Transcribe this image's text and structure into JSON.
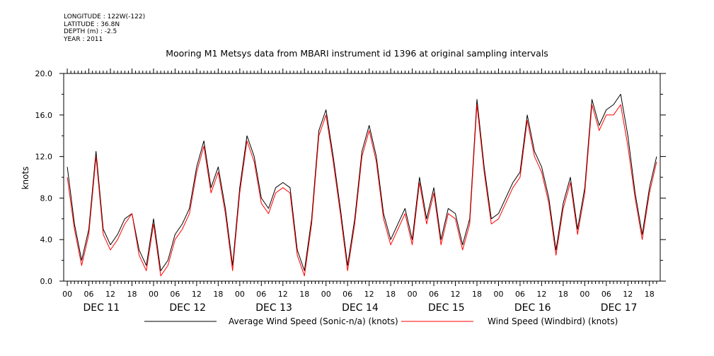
{
  "header": {
    "longitude": "LONGITUDE : 122W(-122)",
    "latitude": "LATITUDE : 36.8N",
    "depth": "DEPTH (m) : -2.5",
    "year": "YEAR : 2011"
  },
  "chart_data": {
    "type": "line",
    "title": "Mooring M1 Metsys data from MBARI instrument id 1396 at original sampling intervals",
    "ylabel": "knots",
    "xlabel": "",
    "ylim": [
      0,
      20
    ],
    "yticks": [
      "0.0",
      "4.0",
      "8.0",
      "12.0",
      "16.0",
      "20.0"
    ],
    "xlim_hours": [
      -1,
      165
    ],
    "hour_ticks": [
      "00",
      "06",
      "12",
      "18",
      "00",
      "06",
      "12",
      "18",
      "00",
      "06",
      "12",
      "18",
      "00",
      "06",
      "12",
      "18",
      "00",
      "06",
      "12",
      "18",
      "00",
      "06",
      "12",
      "18",
      "00",
      "06",
      "12",
      "18"
    ],
    "day_labels": [
      "DEC 11",
      "DEC 12",
      "DEC 13",
      "DEC 14",
      "DEC 15",
      "DEC 16",
      "DEC 17"
    ],
    "legend_position": "bottom",
    "grid": false,
    "series": [
      {
        "name": "Average Wind Speed (Sonic-n/a) (knots)",
        "color": "#000000",
        "x": [
          0,
          2,
          4,
          6,
          8,
          10,
          12,
          14,
          16,
          18,
          20,
          22,
          24,
          26,
          28,
          30,
          32,
          34,
          36,
          38,
          40,
          42,
          44,
          46,
          48,
          50,
          52,
          54,
          56,
          58,
          60,
          62,
          64,
          66,
          68,
          70,
          72,
          74,
          76,
          78,
          80,
          82,
          84,
          86,
          88,
          90,
          92,
          94,
          96,
          98,
          100,
          102,
          104,
          106,
          108,
          110,
          112,
          114,
          116,
          118,
          120,
          122,
          124,
          126,
          128,
          130,
          132,
          134,
          136,
          138,
          140,
          142,
          144,
          146,
          148,
          150,
          152,
          154,
          156,
          158,
          160,
          162,
          164
        ],
        "values": [
          11.0,
          5.5,
          2.0,
          5.0,
          12.5,
          5.0,
          3.5,
          4.5,
          6.0,
          6.5,
          3.0,
          1.5,
          6.0,
          1.0,
          2.0,
          4.5,
          5.5,
          7.0,
          11.0,
          13.5,
          9.0,
          11.0,
          7.0,
          1.5,
          9.0,
          14.0,
          12.0,
          8.0,
          7.0,
          9.0,
          9.5,
          9.0,
          3.0,
          1.0,
          6.0,
          14.5,
          16.5,
          12.0,
          7.0,
          1.5,
          6.0,
          12.5,
          15.0,
          12.0,
          6.5,
          4.0,
          5.5,
          7.0,
          4.0,
          10.0,
          6.0,
          9.0,
          4.0,
          7.0,
          6.5,
          3.5,
          6.0,
          17.5,
          11.0,
          6.0,
          6.5,
          8.0,
          9.5,
          10.5,
          16.0,
          12.5,
          11.0,
          8.0,
          3.0,
          7.5,
          10.0,
          5.0,
          9.0,
          17.5,
          15.0,
          16.5,
          17.0,
          18.0,
          14.0,
          8.5,
          4.5,
          9.0,
          12.0
        ]
      },
      {
        "name": "Wind Speed (Windbird) (knots)",
        "color": "#ff0000",
        "x": [
          0,
          2,
          4,
          6,
          8,
          10,
          12,
          14,
          16,
          18,
          20,
          22,
          24,
          26,
          28,
          30,
          32,
          34,
          36,
          38,
          40,
          42,
          44,
          46,
          48,
          50,
          52,
          54,
          56,
          58,
          60,
          62,
          64,
          66,
          68,
          70,
          72,
          74,
          76,
          78,
          80,
          82,
          84,
          86,
          88,
          90,
          92,
          94,
          96,
          98,
          100,
          102,
          104,
          106,
          108,
          110,
          112,
          114,
          116,
          118,
          120,
          122,
          124,
          126,
          128,
          130,
          132,
          134,
          136,
          138,
          140,
          142,
          144,
          146,
          148,
          150,
          152,
          154,
          156,
          158,
          160,
          162,
          164
        ],
        "values": [
          10.0,
          5.0,
          1.5,
          4.5,
          12.0,
          4.5,
          3.0,
          4.0,
          5.5,
          6.5,
          2.5,
          1.0,
          5.5,
          0.5,
          1.5,
          4.0,
          5.0,
          6.5,
          10.5,
          13.0,
          8.5,
          10.5,
          6.5,
          1.0,
          8.5,
          13.5,
          11.5,
          7.5,
          6.5,
          8.5,
          9.0,
          8.5,
          2.5,
          0.5,
          5.5,
          14.0,
          16.0,
          11.5,
          6.5,
          1.0,
          5.5,
          12.0,
          14.5,
          11.5,
          6.0,
          3.5,
          5.0,
          6.5,
          3.5,
          9.5,
          5.5,
          8.5,
          3.5,
          6.5,
          6.0,
          3.0,
          5.5,
          17.0,
          10.5,
          5.5,
          6.0,
          7.5,
          9.0,
          10.0,
          15.5,
          12.0,
          10.5,
          7.5,
          2.5,
          7.0,
          9.5,
          4.5,
          8.5,
          17.0,
          14.5,
          16.0,
          16.0,
          17.0,
          13.0,
          8.0,
          4.0,
          8.5,
          11.5
        ]
      }
    ]
  }
}
